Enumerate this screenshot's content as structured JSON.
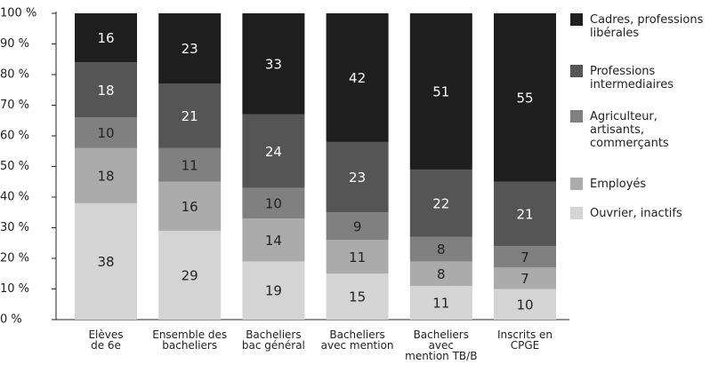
{
  "chart_data": {
    "type": "stacked_bar",
    "categories": [
      "Elèves\nde 6e",
      "Ensemble des\nbacheliers",
      "Bacheliers\nbac général",
      "Bacheliers\navec mention",
      "Bacheliers\navec\nmention TB/B",
      "Inscrits en\nCPGE"
    ],
    "series": [
      {
        "name": "Ouvrier, inactifs",
        "color": "#d4d4d4",
        "values": [
          38,
          29,
          19,
          15,
          11,
          10
        ]
      },
      {
        "name": "Employés",
        "color": "#ababab",
        "values": [
          18,
          16,
          14,
          11,
          8,
          7
        ]
      },
      {
        "name": "Agriculteur,\nartisants,\ncommerçants",
        "color": "#808080",
        "values": [
          10,
          11,
          10,
          9,
          8,
          7
        ]
      },
      {
        "name": "Professions\nintermediaires",
        "color": "#555555",
        "values": [
          18,
          21,
          24,
          23,
          22,
          21
        ]
      },
      {
        "name": "Cadres, professions\nlibérales",
        "color": "#1e1e1e",
        "values": [
          16,
          23,
          33,
          42,
          51,
          55
        ]
      }
    ],
    "ylim": [
      0,
      100
    ],
    "yticks": [
      {
        "value": 0,
        "label": "0 %"
      },
      {
        "value": 10,
        "label": "10 %"
      },
      {
        "value": 20,
        "label": "20 %"
      },
      {
        "value": 30,
        "label": "30 %"
      },
      {
        "value": 40,
        "label": "40 %"
      },
      {
        "value": 50,
        "label": "50 %"
      },
      {
        "value": 60,
        "label": "60 %"
      },
      {
        "value": 70,
        "label": "70 %"
      },
      {
        "value": 80,
        "label": "80 %"
      },
      {
        "value": 90,
        "label": "90 %"
      },
      {
        "value": 100,
        "label": "100 %"
      }
    ],
    "legend": "right"
  }
}
